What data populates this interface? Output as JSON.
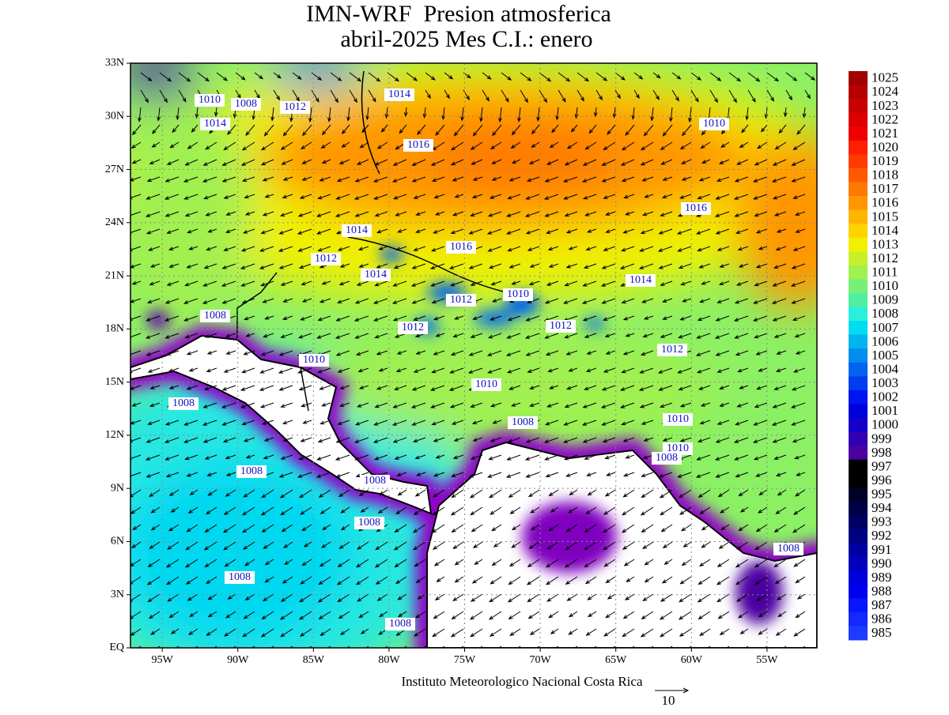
{
  "header": {
    "title": "IMN-WRF  Presion atmosferica",
    "subtitle": "abril-2025 Mes C.I.: enero"
  },
  "map": {
    "lonlim": [
      -97.1,
      -51.7
    ],
    "latlim": [
      0,
      33
    ],
    "lon_ticks": [
      {
        "value": -95,
        "label": "95W"
      },
      {
        "value": -90,
        "label": "90W"
      },
      {
        "value": -85,
        "label": "85W"
      },
      {
        "value": -80,
        "label": "80W"
      },
      {
        "value": -75,
        "label": "75W"
      },
      {
        "value": -70,
        "label": "70W"
      },
      {
        "value": -65,
        "label": "65W"
      },
      {
        "value": -60,
        "label": "60W"
      },
      {
        "value": -55,
        "label": "55W"
      }
    ],
    "lat_ticks": [
      {
        "value": 0,
        "label": "EQ"
      },
      {
        "value": 3,
        "label": "3N"
      },
      {
        "value": 6,
        "label": "6N"
      },
      {
        "value": 9,
        "label": "9N"
      },
      {
        "value": 12,
        "label": "12N"
      },
      {
        "value": 15,
        "label": "15N"
      },
      {
        "value": 18,
        "label": "18N"
      },
      {
        "value": 21,
        "label": "21N"
      },
      {
        "value": 24,
        "label": "24N"
      },
      {
        "value": 27,
        "label": "27N"
      },
      {
        "value": 30,
        "label": "30N"
      },
      {
        "value": 33,
        "label": "33N"
      }
    ],
    "contour_labels": [
      1010,
      1008,
      1012,
      1014,
      1014,
      1016,
      1010,
      1016,
      1014,
      1016,
      1012,
      1014,
      1014,
      1012,
      1010,
      1008,
      1012,
      1012,
      1012,
      1010,
      1010,
      1008,
      1008,
      1010,
      1010,
      1008,
      1008,
      1008,
      1008,
      1008,
      1008,
      1008
    ]
  },
  "colorbar": {
    "levels": [
      1025,
      1024,
      1023,
      1022,
      1021,
      1020,
      1019,
      1018,
      1017,
      1016,
      1015,
      1014,
      1013,
      1012,
      1011,
      1010,
      1009,
      1008,
      1007,
      1006,
      1005,
      1004,
      1003,
      1002,
      1001,
      1000,
      999,
      998,
      997,
      996,
      995,
      994,
      993,
      992,
      991,
      990,
      989,
      988,
      987,
      986,
      985
    ],
    "colors": [
      "#a00000",
      "#b40000",
      "#c80000",
      "#dc0000",
      "#f00000",
      "#ff1e00",
      "#ff3c00",
      "#ff5a00",
      "#ff7800",
      "#ff9600",
      "#ffb400",
      "#ffd200",
      "#f0f000",
      "#c8f028",
      "#a0f050",
      "#78f078",
      "#50f0a0",
      "#28f0dc",
      "#00dcf0",
      "#00b4f0",
      "#008cf0",
      "#0064f0",
      "#003cf0",
      "#0014f0",
      "#0000dc",
      "#1400c8",
      "#3200b4",
      "#4b00a0",
      "#000000",
      "#000000",
      "#000028",
      "#000046",
      "#000064",
      "#000082",
      "#0000a0",
      "#0000be",
      "#0000dc",
      "#0000f0",
      "#0a14ff",
      "#1428ff",
      "#1e3cff"
    ]
  },
  "footer": {
    "credit": "Instituto Meteorologico Nacional Costa Rica",
    "reference_vector": 10
  }
}
